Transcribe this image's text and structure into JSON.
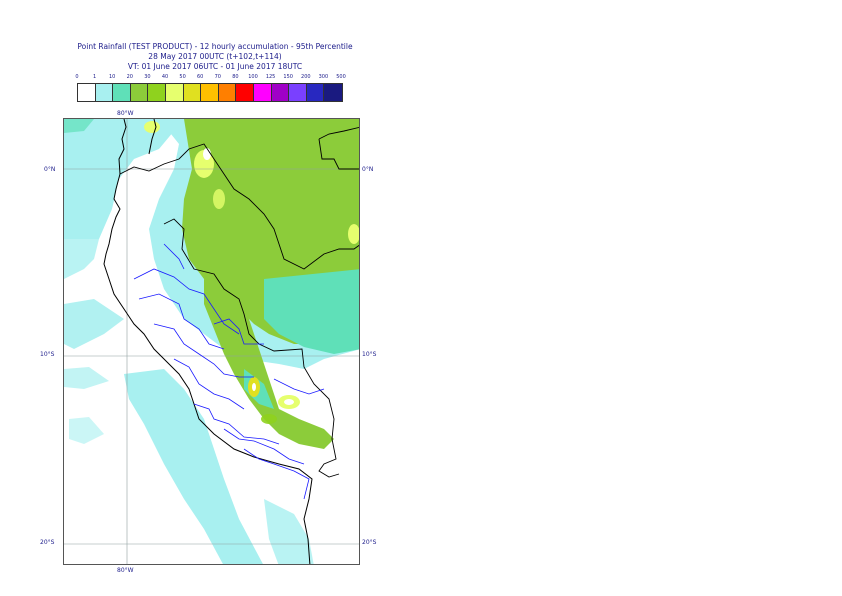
{
  "title": {
    "line1": "Point Rainfall (TEST PRODUCT) - 12 hourly accumulation - 95th Percentile",
    "line2": "28 May 2017 00UTC (t+102,t+114)",
    "line3": "VT: 01 June 2017 06UTC - 01 June 2017 18UTC"
  },
  "legend": {
    "ticks": [
      "0",
      "1",
      "10",
      "20",
      "30",
      "40",
      "50",
      "60",
      "70",
      "80",
      "100",
      "125",
      "150",
      "200",
      "300",
      "500"
    ],
    "colors": [
      "#ffffff",
      "#a8f0f0",
      "#5fe0b8",
      "#8ccc3a",
      "#8fd21e",
      "#e6ff6e",
      "#e0e020",
      "#ffc000",
      "#ff7f00",
      "#ff0000",
      "#ff00ff",
      "#a000c8",
      "#7a40ff",
      "#2828c0",
      "#1a1a80"
    ]
  },
  "axes": {
    "lon_top": "80°W",
    "lon_bottom": "80°W",
    "lat_0_left": "0°N",
    "lat_0_right": "0°N",
    "lat_10_left": "10°S",
    "lat_10_right": "10°S",
    "lat_20_left": "20°S",
    "lat_20_right": "20°S"
  }
}
